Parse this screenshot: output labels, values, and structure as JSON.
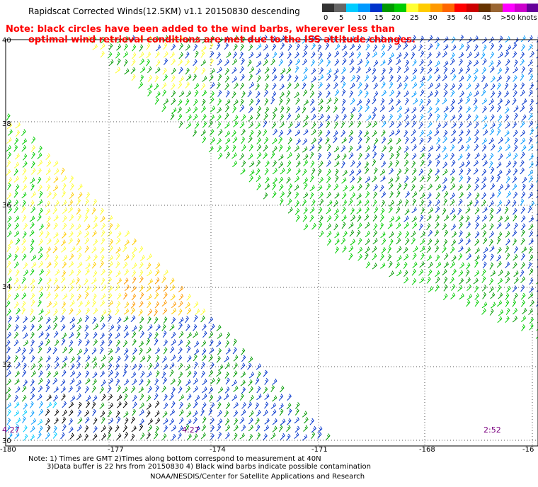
{
  "title": "Rapidscat Corrected Winds(12.5KM) v1.1 20150830 descending",
  "note_line1": "Note: black circles have been added to the wind barbs, wherever less than",
  "note_line2": "optimal wind retrieval conditions are met due to the ISS attitude changes.",
  "legend": {
    "colors": [
      "#333333",
      "#666666",
      "#00ccff",
      "#0099ff",
      "#0033cc",
      "#009900",
      "#00cc00",
      "#ffff33",
      "#ffcc00",
      "#ff9900",
      "#ff6600",
      "#ff0000",
      "#cc0000",
      "#663300",
      "#996633",
      "#ff00ff",
      "#cc00cc",
      "#660099",
      "#330066"
    ],
    "labels": [
      "0",
      "5",
      "10",
      "15",
      "20",
      "25",
      "30",
      "35",
      "40",
      "45",
      ">50 knots"
    ]
  },
  "lat_labels": [
    "40",
    "38",
    "36",
    "34",
    "32",
    "30"
  ],
  "lon_labels": [
    "-180",
    "-177",
    "-174",
    "-171",
    "-168",
    "-16"
  ],
  "time_labels": [
    "4:27",
    "4:27",
    "2:52"
  ],
  "footer": {
    "line1": "Note: 1) Times are GMT 2)Times along bottom correspond to measurement at 40N",
    "line2": "3)Data buffer is 22 hrs from 20150830 4) Black wind barbs indicate possible contamination",
    "line3": "NOAA/NESDIS/Center for Satellite Applications and Research"
  }
}
